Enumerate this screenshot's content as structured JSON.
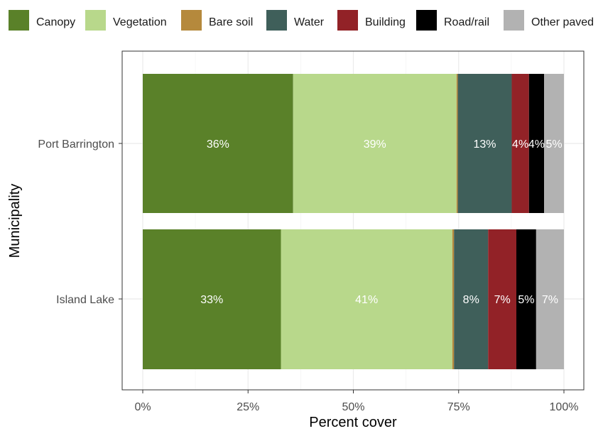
{
  "chart_data": {
    "type": "bar",
    "orientation": "horizontal",
    "stacked": true,
    "title": "",
    "xlabel": "Percent cover",
    "ylabel": "Municipality",
    "xlim": [
      0,
      100
    ],
    "x_ticks": [
      "0%",
      "25%",
      "50%",
      "75%",
      "100%"
    ],
    "categories": [
      "Port Barrington",
      "Island Lake"
    ],
    "series": [
      {
        "name": "Canopy",
        "color": "#5a8129",
        "values": [
          35.7,
          32.8
        ],
        "labels": [
          "36%",
          "33%"
        ]
      },
      {
        "name": "Vegetation",
        "color": "#b8d88b",
        "values": [
          38.8,
          40.7
        ],
        "labels": [
          "39%",
          "41%"
        ]
      },
      {
        "name": "Bare soil",
        "color": "#b5893c",
        "values": [
          0.3,
          0.4
        ],
        "labels": [
          "",
          ""
        ]
      },
      {
        "name": "Water",
        "color": "#3f5f5a",
        "values": [
          12.8,
          8.1
        ],
        "labels": [
          "13%",
          "8%"
        ]
      },
      {
        "name": "Building",
        "color": "#922227",
        "values": [
          4.1,
          6.7
        ],
        "labels": [
          "4%",
          "7%"
        ]
      },
      {
        "name": "Road/rail",
        "color": "#000000",
        "values": [
          3.6,
          4.7
        ],
        "labels": [
          "4%",
          "5%"
        ]
      },
      {
        "name": "Other paved",
        "color": "#b2b2b2",
        "values": [
          4.7,
          6.6
        ],
        "labels": [
          "5%",
          "7%"
        ]
      }
    ],
    "legend_position": "top",
    "grid": true,
    "background": "#ffffff",
    "grid_color": "#ebebeb",
    "border_color": "#333333"
  }
}
